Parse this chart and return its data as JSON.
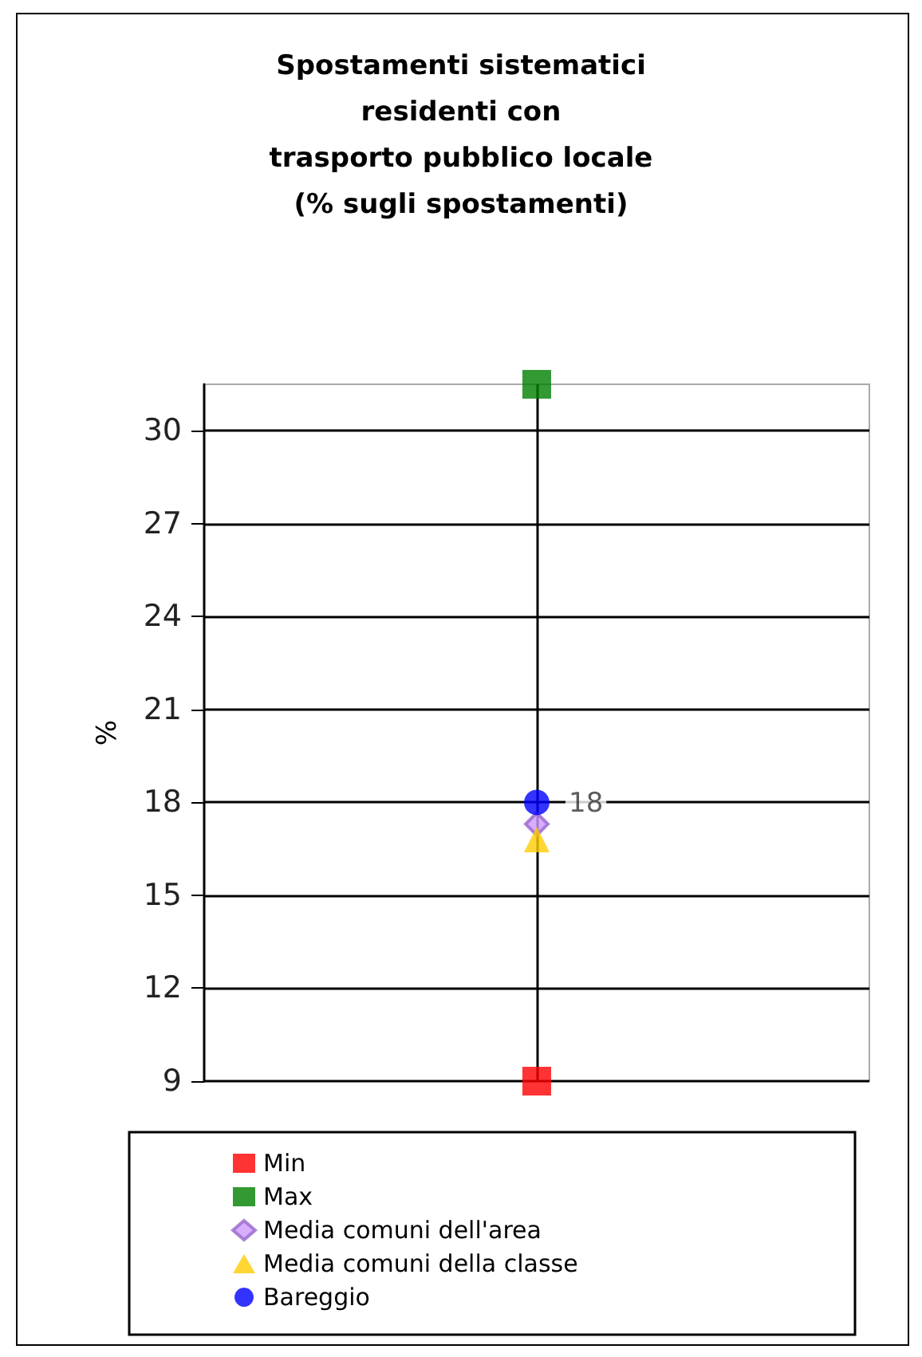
{
  "chart_data": {
    "type": "scatter",
    "title": "Spostamenti sistematici\nresidenti con\ntrasporto pubblico locale\n(% sugli spostamenti)",
    "ylabel": "%",
    "categories": [
      null
    ],
    "series": [
      {
        "name": "Min",
        "color": "#ff0000",
        "marker": "square",
        "values": [
          9
        ]
      },
      {
        "name": "Max",
        "color": "#008000",
        "marker": "square",
        "values": [
          31.5
        ]
      },
      {
        "name": "Media comuni dell'area",
        "color": "#cc99ff",
        "marker": "diamond",
        "values": [
          17.3
        ]
      },
      {
        "name": "Media comuni della classe",
        "color": "#ffcc00",
        "marker": "triangle",
        "values": [
          16.8
        ]
      },
      {
        "name": "Bareggio",
        "color": "#0000ff",
        "marker": "circle",
        "values": [
          18
        ],
        "value_labels": [
          "18"
        ]
      }
    ],
    "ylim": [
      9,
      31.5
    ],
    "yticks": [
      9,
      12,
      15,
      18,
      21,
      24,
      27,
      30
    ],
    "grid": true,
    "legend": "bottom"
  }
}
